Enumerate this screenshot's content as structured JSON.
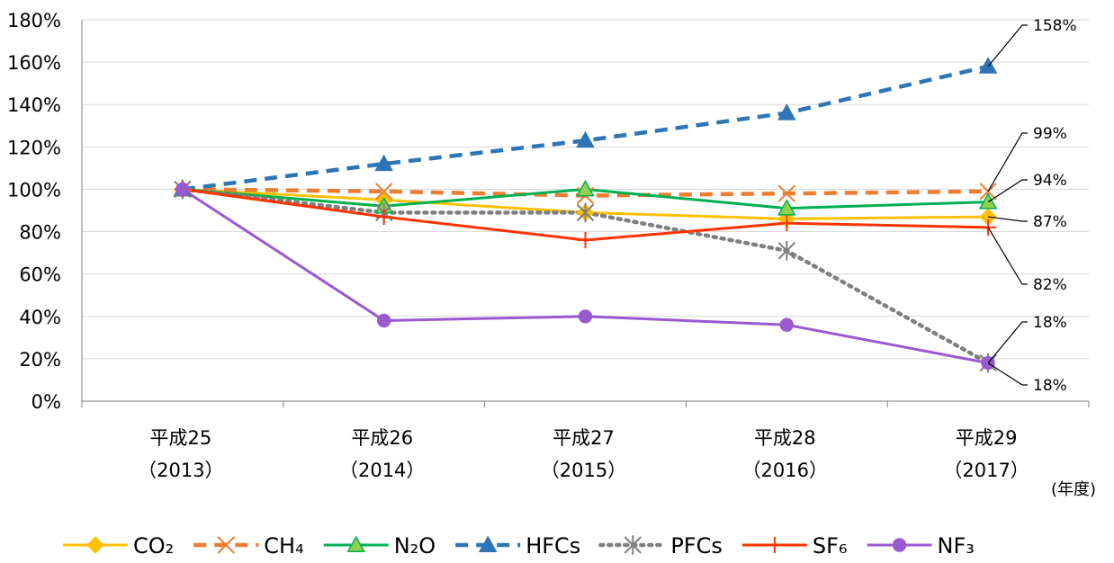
{
  "chart_data": {
    "type": "line",
    "categories": [
      [
        "平成25",
        "（2013）"
      ],
      [
        "平成26",
        "（2014）"
      ],
      [
        "平成27",
        "（2015）"
      ],
      [
        "平成28",
        "（2016）"
      ],
      [
        "平成29",
        "（2017）"
      ]
    ],
    "xunit": "(年度)",
    "ylim": [
      0,
      180
    ],
    "yticks": [
      0,
      20,
      40,
      60,
      80,
      100,
      120,
      140,
      160,
      180
    ],
    "yticklabels": [
      "0%",
      "20%",
      "40%",
      "60%",
      "80%",
      "100%",
      "120%",
      "140%",
      "160%",
      "180%"
    ],
    "grid": true,
    "legend_position": "bottom",
    "series": [
      {
        "name": "CO₂",
        "values": [
          100,
          95,
          89,
          86,
          87
        ],
        "color": "#FFC000",
        "marker": "diamond",
        "dash": "solid"
      },
      {
        "name": "CH₄",
        "values": [
          100,
          99,
          97,
          98,
          99
        ],
        "color": "#ED7D31",
        "marker": "x",
        "dash": "dash"
      },
      {
        "name": "N₂O",
        "values": [
          100,
          92,
          100,
          91,
          94
        ],
        "color": "#00B050",
        "marker": "triangle",
        "dash": "solid"
      },
      {
        "name": "HFCs",
        "values": [
          100,
          112,
          123,
          136,
          158
        ],
        "color": "#2E75B6",
        "marker": "triangle",
        "dash": "dash"
      },
      {
        "name": "PFCs",
        "values": [
          100,
          89,
          89,
          71,
          18
        ],
        "color": "#7F7F7F",
        "marker": "asterisk",
        "dash": "dot"
      },
      {
        "name": "SF₆",
        "values": [
          100,
          87,
          76,
          84,
          82
        ],
        "color": "#FF3300",
        "marker": "plus",
        "dash": "solid"
      },
      {
        "name": "NF₃",
        "values": [
          100,
          38,
          40,
          36,
          18
        ],
        "color": "#9B59D0",
        "marker": "circle",
        "dash": "solid"
      }
    ],
    "annotations": [
      {
        "series": "HFCs",
        "text": "158%"
      },
      {
        "series": "CH₄",
        "text": "99%"
      },
      {
        "series": "N₂O",
        "text": "94%"
      },
      {
        "series": "CO₂",
        "text": "87%"
      },
      {
        "series": "SF₆",
        "text": "82%"
      },
      {
        "series": "NF₃",
        "text": "18%"
      },
      {
        "series": "PFCs",
        "text": "18%"
      }
    ]
  }
}
